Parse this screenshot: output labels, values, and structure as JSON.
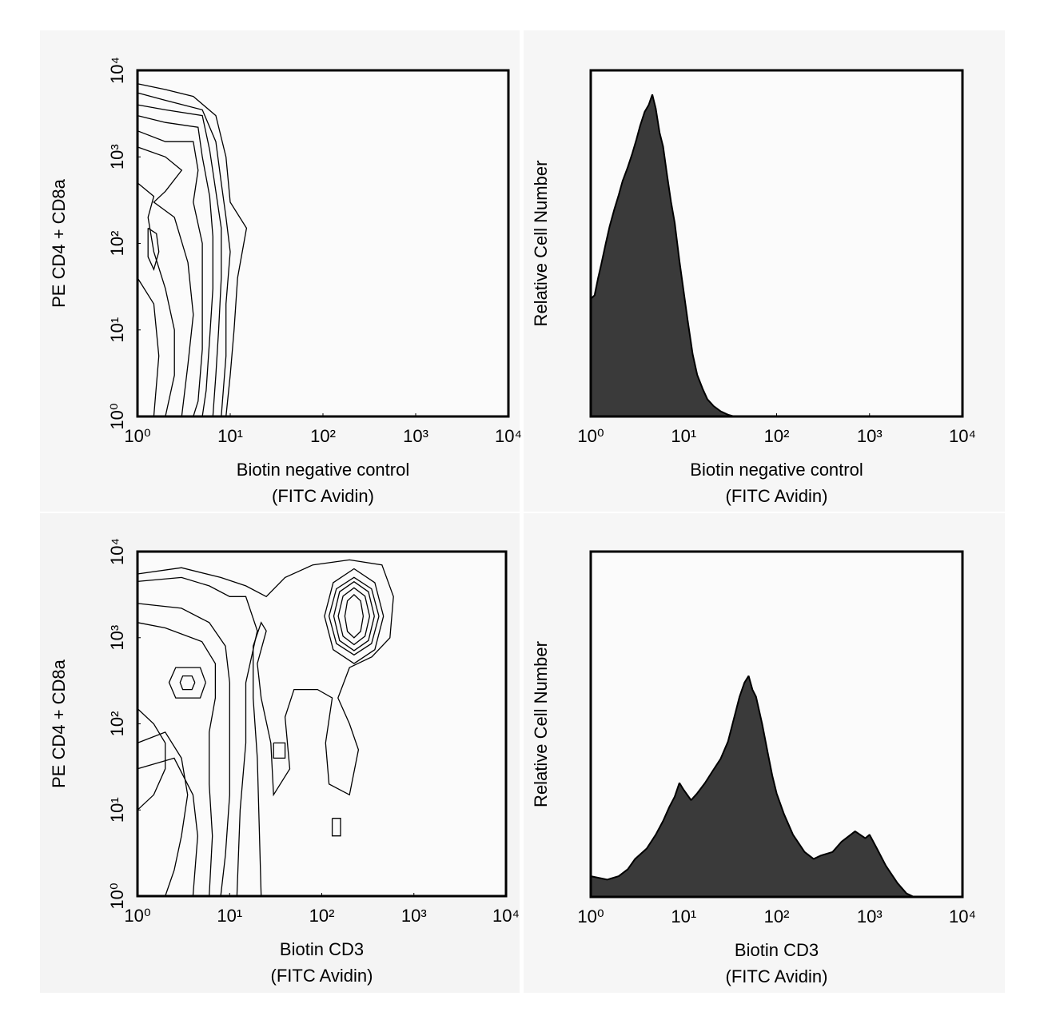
{
  "chart_data": [
    {
      "type": "contour",
      "y_label": "PE CD4 + CD8a",
      "x_label": [
        "Biotin negative control",
        "(FITC Avidin)"
      ],
      "xscale": "log",
      "yscale": "log",
      "xlim": [
        1,
        10000
      ],
      "ylim": [
        1,
        10000
      ],
      "color": "#000000",
      "xticks": [
        {
          "value": 1,
          "label": "10⁰"
        },
        {
          "value": 10,
          "label": "10¹"
        },
        {
          "value": 100,
          "label": "10²"
        },
        {
          "value": 1000,
          "label": "10³"
        },
        {
          "value": 10000,
          "label": "10⁴"
        }
      ],
      "yticks": [
        {
          "value": 1,
          "label": "10⁰"
        },
        {
          "value": 10,
          "label": "10¹"
        },
        {
          "value": 100,
          "label": "10²"
        },
        {
          "value": 1000,
          "label": "10³"
        },
        {
          "value": 10000,
          "label": "10⁴"
        }
      ],
      "contours": [
        {
          "x": [
            1,
            2,
            4,
            7,
            9,
            10,
            15,
            12,
            11,
            10,
            9
          ],
          "y": [
            7000,
            6000,
            5000,
            3000,
            1000,
            300,
            150,
            40,
            10,
            3,
            1
          ]
        },
        {
          "x": [
            1,
            2,
            5,
            7,
            8,
            9,
            10,
            9,
            9,
            8
          ],
          "y": [
            5500,
            4500,
            3500,
            1500,
            500,
            200,
            80,
            20,
            5,
            1
          ]
        },
        {
          "x": [
            1,
            2,
            5,
            6,
            7,
            8,
            8,
            7.5,
            7,
            6.5
          ],
          "y": [
            4000,
            3500,
            3000,
            1200,
            400,
            150,
            40,
            10,
            3,
            1
          ]
        },
        {
          "x": [
            1,
            2,
            4.5,
            5,
            6,
            6.5,
            6.5,
            6,
            5.5,
            5
          ],
          "y": [
            3000,
            2500,
            2200,
            1000,
            350,
            120,
            30,
            8,
            2,
            1
          ]
        },
        {
          "x": [
            1,
            2,
            4,
            4.5,
            4,
            5,
            5,
            5,
            4.5,
            4
          ],
          "y": [
            2000,
            1500,
            1500,
            700,
            300,
            100,
            25,
            6,
            1.5,
            1
          ]
        },
        {
          "x": [
            1,
            2,
            3,
            2,
            1.5,
            2.5,
            3.5,
            4,
            3.5,
            3
          ],
          "y": [
            1300,
            1000,
            700,
            400,
            300,
            200,
            60,
            15,
            4,
            1
          ]
        },
        {
          "x": [
            1,
            1.5,
            1.3,
            1.5,
            2,
            2.5,
            2.5,
            2
          ],
          "y": [
            500,
            350,
            200,
            80,
            30,
            10,
            3,
            1
          ]
        },
        {
          "x": [
            1.3,
            1.6,
            1.7,
            1.5,
            1.3,
            1.3
          ],
          "y": [
            150,
            130,
            80,
            50,
            70,
            150
          ]
        },
        {
          "x": [
            1,
            1.5,
            1.7,
            1.5
          ],
          "y": [
            40,
            20,
            5,
            1
          ]
        }
      ]
    },
    {
      "type": "histogram",
      "y_label": "Relative Cell Number",
      "x_label": [
        "Biotin negative control",
        "(FITC Avidin)"
      ],
      "xscale": "log",
      "xlim": [
        1,
        10000
      ],
      "ylim": [
        0,
        100
      ],
      "color": "#3a3a3a",
      "xticks": [
        {
          "value": 1,
          "label": "10⁰"
        },
        {
          "value": 10,
          "label": "10¹"
        },
        {
          "value": 100,
          "label": "10²"
        },
        {
          "value": 1000,
          "label": "10³"
        },
        {
          "value": 10000,
          "label": "10⁴"
        }
      ],
      "x": [
        1,
        1.1,
        1.2,
        1.3,
        1.45,
        1.6,
        1.8,
        2,
        2.2,
        2.5,
        2.8,
        3.1,
        3.4,
        3.8,
        4.2,
        4.6,
        5,
        5.5,
        6,
        6.6,
        7.3,
        8,
        9,
        10,
        11,
        12.5,
        14,
        16,
        18,
        21,
        25,
        30,
        35,
        10000
      ],
      "values": [
        34,
        35,
        40,
        44,
        50,
        55,
        60,
        64,
        68,
        72,
        76,
        80,
        84,
        88,
        90,
        93,
        89,
        82,
        78,
        70,
        62,
        56,
        45,
        36,
        28,
        18,
        12,
        8,
        5,
        3,
        1.5,
        0.5,
        0,
        0
      ]
    },
    {
      "type": "contour",
      "y_label": "PE CD4 + CD8a",
      "x_label": [
        "Biotin CD3",
        "(FITC Avidin)"
      ],
      "xscale": "log",
      "yscale": "log",
      "xlim": [
        1,
        10000
      ],
      "ylim": [
        1,
        10000
      ],
      "color": "#000000",
      "xticks": [
        {
          "value": 1,
          "label": "10⁰"
        },
        {
          "value": 10,
          "label": "10¹"
        },
        {
          "value": 100,
          "label": "10²"
        },
        {
          "value": 1000,
          "label": "10³"
        },
        {
          "value": 10000,
          "label": "10⁴"
        }
      ],
      "yticks": [
        {
          "value": 1,
          "label": "10⁰"
        },
        {
          "value": 10,
          "label": "10¹"
        },
        {
          "value": 100,
          "label": "10²"
        },
        {
          "value": 1000,
          "label": "10³"
        },
        {
          "value": 10000,
          "label": "10⁴"
        }
      ],
      "contours": [
        {
          "x": [
            282,
            264,
            224,
            190,
            178,
            190,
            224,
            264,
            282
          ],
          "y": [
            1778,
            2673,
            3162,
            2673,
            1778,
            1183,
            1000,
            1183,
            1778
          ]
        },
        {
          "x": [
            331,
            295,
            224,
            170,
            151,
            170,
            224,
            295,
            331
          ],
          "y": [
            1778,
            3041,
            3802,
            3041,
            1778,
            1040,
            832,
            1040,
            1778
          ]
        },
        {
          "x": [
            372,
            321,
            224,
            156,
            135,
            156,
            224,
            321,
            372
          ],
          "y": [
            1778,
            3412,
            4467,
            3412,
            1778,
            927,
            708,
            927,
            1778
          ]
        },
        {
          "x": [
            417,
            347,
            224,
            144,
            120,
            144,
            224,
            347,
            417
          ],
          "y": [
            1778,
            3698,
            5012,
            3698,
            1778,
            855,
            631,
            855,
            1778
          ]
        },
        {
          "x": [
            468,
            377,
            224,
            133,
            107,
            133,
            224,
            377,
            468
          ],
          "y": [
            1778,
            4355,
            6310,
            4355,
            1778,
            726,
            501,
            726,
            1778
          ]
        },
        {
          "x": [
            4.2,
            3.9,
            3.1,
            2.9,
            3.1,
            3.9,
            4.2
          ],
          "y": [
            302,
            360,
            360,
            302,
            250,
            250,
            302
          ]
        },
        {
          "x": [
            5.5,
            4.8,
            2.6,
            2.2,
            2.6,
            4.8,
            5.5
          ],
          "y": [
            302,
            450,
            450,
            302,
            200,
            200,
            302
          ]
        },
        {
          "x": [
            1,
            2,
            5,
            7,
            7,
            6,
            6,
            6.5,
            6
          ],
          "y": [
            1500,
            1300,
            900,
            500,
            200,
            80,
            20,
            5,
            1
          ]
        },
        {
          "x": [
            1,
            3,
            6,
            9,
            10,
            10,
            10,
            9,
            8
          ],
          "y": [
            2500,
            2200,
            1500,
            800,
            300,
            80,
            15,
            3,
            1
          ]
        },
        {
          "x": [
            1,
            3,
            6,
            10,
            15,
            20,
            15,
            15,
            13,
            12
          ],
          "y": [
            4500,
            5000,
            4000,
            3000,
            3000,
            1200,
            300,
            60,
            10,
            1
          ]
        },
        {
          "x": [
            1,
            1.5,
            2,
            2,
            1.5,
            1
          ],
          "y": [
            150,
            100,
            60,
            30,
            15,
            10
          ]
        },
        {
          "x": [
            1,
            2,
            3,
            3.5,
            3,
            2.5,
            2
          ],
          "y": [
            60,
            80,
            40,
            15,
            5,
            2,
            1
          ]
        },
        {
          "x": [
            1,
            2.5,
            4,
            4.5,
            4
          ],
          "y": [
            30,
            40,
            15,
            5,
            1
          ]
        },
        {
          "x": [
            1,
            3,
            8,
            15,
            25,
            40,
            80,
            200,
            450,
            600,
            550,
            350,
            200,
            150,
            200,
            250,
            200,
            120,
            110,
            130,
            90,
            50,
            40,
            45,
            30,
            28,
            22,
            20,
            25,
            22,
            18,
            18,
            20,
            22
          ],
          "y": [
            5500,
            6500,
            5000,
            4000,
            3000,
            5000,
            7000,
            8000,
            7000,
            3000,
            1000,
            600,
            450,
            200,
            100,
            50,
            15,
            20,
            60,
            200,
            250,
            250,
            120,
            30,
            15,
            60,
            200,
            500,
            1200,
            1500,
            800,
            200,
            40,
            1
          ]
        },
        {
          "x": [
            130,
            160,
            160,
            130,
            130
          ],
          "y": [
            8,
            8,
            5,
            5,
            8
          ]
        },
        {
          "x": [
            30,
            40,
            40,
            30,
            30
          ],
          "y": [
            60,
            60,
            40,
            40,
            60
          ]
        }
      ]
    },
    {
      "type": "histogram",
      "y_label": "Relative Cell Number",
      "x_label": [
        "Biotin CD3",
        "(FITC Avidin)"
      ],
      "xscale": "log",
      "xlim": [
        1,
        10000
      ],
      "ylim": [
        0,
        100
      ],
      "color": "#3a3a3a",
      "xticks": [
        {
          "value": 1,
          "label": "10⁰"
        },
        {
          "value": 10,
          "label": "10¹"
        },
        {
          "value": 100,
          "label": "10²"
        },
        {
          "value": 1000,
          "label": "10³"
        },
        {
          "value": 10000,
          "label": "10⁴"
        }
      ],
      "x": [
        1,
        1.5,
        2,
        2.5,
        3,
        4,
        5,
        6,
        7,
        8,
        9,
        10,
        12,
        14,
        17,
        20,
        25,
        30,
        35,
        40,
        45,
        50,
        55,
        60,
        70,
        80,
        90,
        100,
        120,
        150,
        200,
        250,
        300,
        400,
        500,
        700,
        900,
        1000,
        1200,
        1500,
        2000,
        2500,
        3000,
        10000
      ],
      "values": [
        6,
        5,
        6,
        8,
        11,
        14,
        18,
        22,
        26,
        29,
        33,
        31,
        28,
        30,
        33,
        36,
        40,
        45,
        52,
        58,
        62,
        64,
        60,
        58,
        50,
        42,
        35,
        30,
        24,
        18,
        13,
        11,
        12,
        13,
        16,
        19,
        17,
        18,
        14,
        9,
        4,
        1,
        0,
        0
      ]
    }
  ]
}
